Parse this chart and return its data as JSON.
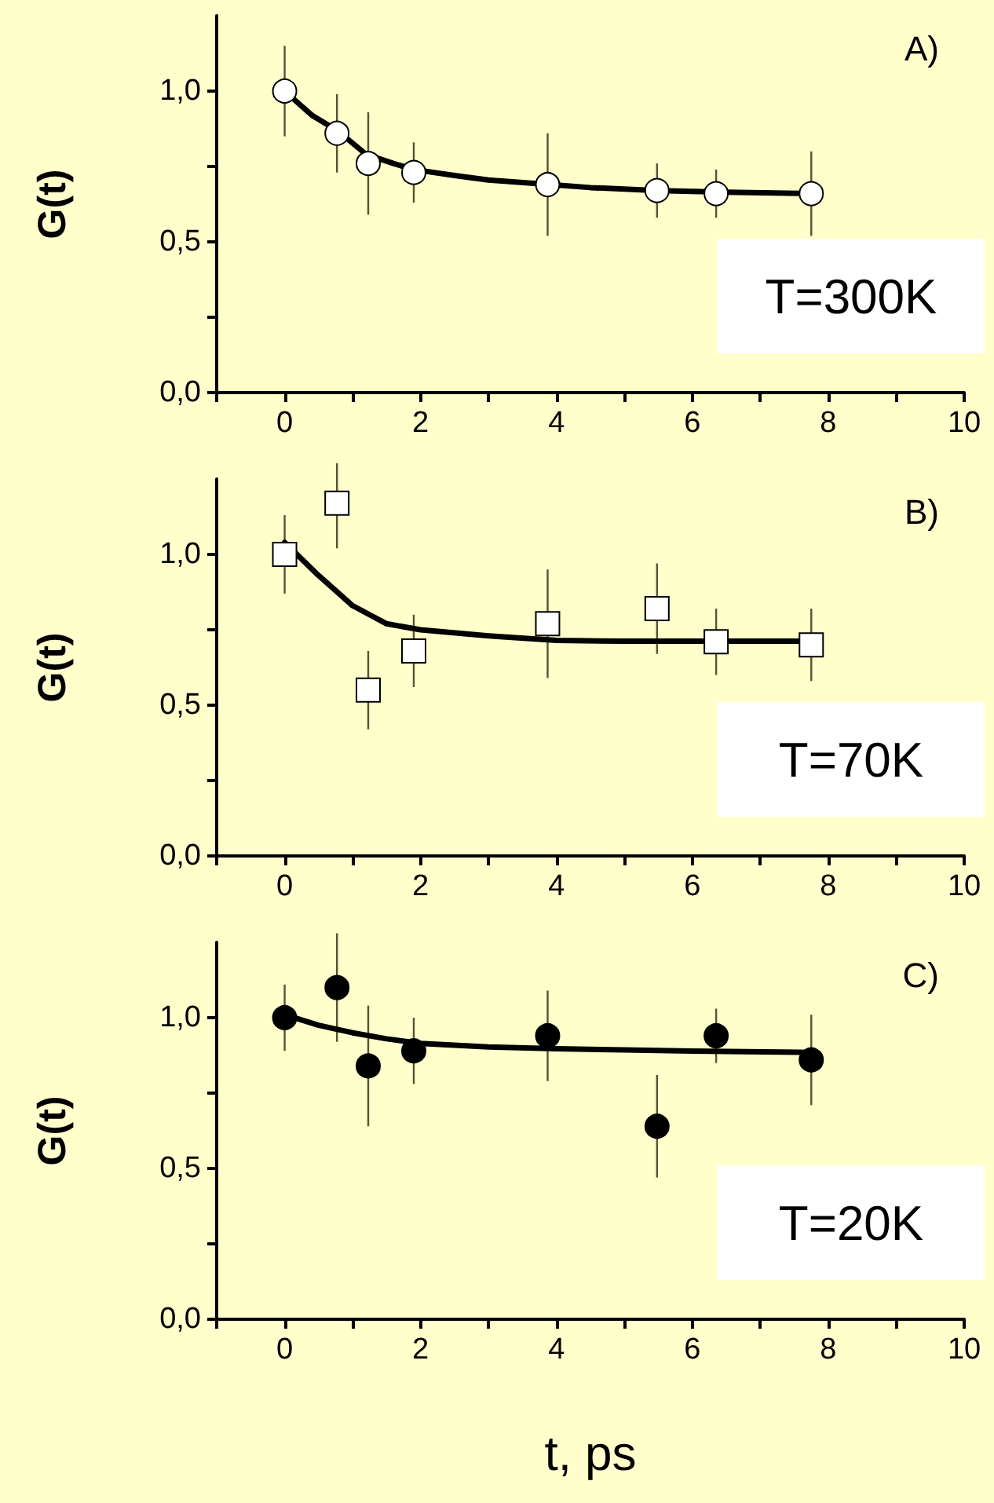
{
  "chart_data": [
    {
      "type": "scatter",
      "ylabel": "G(t)",
      "annotations": [
        "A)",
        "T=300K"
      ],
      "xlim": [
        -1,
        10
      ],
      "xticks": [
        {
          "value": -1,
          "label": null
        },
        0,
        {
          "value": 1,
          "label": null
        },
        2,
        {
          "value": 3,
          "label": null
        },
        4,
        {
          "value": 5,
          "label": null
        },
        6,
        {
          "value": 7,
          "label": null
        },
        8,
        {
          "value": 9,
          "label": null
        },
        10
      ],
      "ylim": [
        0,
        1.25
      ],
      "yticks": [
        {
          "value": 0,
          "label": "0,0"
        },
        {
          "value": 0.25,
          "label": null
        },
        {
          "value": 0.5,
          "label": "0,5"
        },
        {
          "value": 0.75,
          "label": null
        },
        {
          "value": 1,
          "label": "1,0"
        }
      ],
      "series": [
        {
          "marker": "circle",
          "color": "#ffffff",
          "x": [
            0,
            0.77,
            1.23,
            1.9,
            3.87,
            5.48,
            6.35,
            7.75
          ],
          "values": [
            1.0,
            0.86,
            0.76,
            0.73,
            0.69,
            0.67,
            0.66,
            0.66
          ],
          "errors": [
            0.15,
            0.13,
            0.17,
            0.1,
            0.17,
            0.09,
            0.08,
            0.14
          ]
        },
        {
          "type": "line",
          "marker": "none",
          "color": "#000000",
          "x": [
            0,
            0.4,
            0.77,
            1.2,
            1.6,
            1.9,
            2.5,
            3,
            3.9,
            4.5,
            5.5,
            6.5,
            7.75
          ],
          "values": [
            1.0,
            0.92,
            0.87,
            0.79,
            0.76,
            0.74,
            0.72,
            0.705,
            0.69,
            0.68,
            0.67,
            0.665,
            0.66
          ]
        }
      ]
    },
    {
      "type": "scatter",
      "ylabel": "G(t)",
      "annotations": [
        "B)",
        "T=70K"
      ],
      "xlim": [
        -1,
        10
      ],
      "xticks": [
        {
          "value": -1,
          "label": null
        },
        0,
        {
          "value": 1,
          "label": null
        },
        2,
        {
          "value": 3,
          "label": null
        },
        4,
        {
          "value": 5,
          "label": null
        },
        6,
        {
          "value": 7,
          "label": null
        },
        8,
        {
          "value": 9,
          "label": null
        },
        10
      ],
      "ylim": [
        0,
        1.25
      ],
      "yticks": [
        {
          "value": 0,
          "label": "0,0"
        },
        {
          "value": 0.25,
          "label": null
        },
        {
          "value": 0.5,
          "label": "0,5"
        },
        {
          "value": 0.75,
          "label": null
        },
        {
          "value": 1,
          "label": "1,0"
        }
      ],
      "series": [
        {
          "marker": "square",
          "color": "#ffffff",
          "x": [
            0,
            0.77,
            1.23,
            1.9,
            3.87,
            5.48,
            6.35,
            7.75
          ],
          "values": [
            1.0,
            1.17,
            0.55,
            0.68,
            0.77,
            0.82,
            0.71,
            0.7
          ],
          "errors": [
            0.13,
            0.15,
            0.13,
            0.12,
            0.18,
            0.15,
            0.11,
            0.12
          ]
        },
        {
          "type": "line",
          "marker": "none",
          "color": "#000000",
          "x": [
            0,
            0.5,
            1,
            1.5,
            2,
            3,
            4,
            5,
            6,
            7.75
          ],
          "values": [
            1.04,
            0.93,
            0.83,
            0.77,
            0.75,
            0.73,
            0.715,
            0.712,
            0.712,
            0.712
          ]
        }
      ]
    },
    {
      "type": "scatter",
      "ylabel": "G(t)",
      "xlabel": "t, ps",
      "annotations": [
        "C)",
        "T=20K"
      ],
      "xlim": [
        -1,
        10
      ],
      "xticks": [
        {
          "value": -1,
          "label": null
        },
        0,
        {
          "value": 1,
          "label": null
        },
        2,
        {
          "value": 3,
          "label": null
        },
        4,
        {
          "value": 5,
          "label": null
        },
        6,
        {
          "value": 7,
          "label": null
        },
        8,
        {
          "value": 9,
          "label": null
        },
        10
      ],
      "ylim": [
        0,
        1.25
      ],
      "yticks": [
        {
          "value": 0,
          "label": "0,0"
        },
        {
          "value": 0.25,
          "label": null
        },
        {
          "value": 0.5,
          "label": "0,5"
        },
        {
          "value": 0.75,
          "label": null
        },
        {
          "value": 1,
          "label": "1,0"
        }
      ],
      "series": [
        {
          "marker": "circle",
          "color": "#000000",
          "x": [
            0,
            0.77,
            1.23,
            1.9,
            3.87,
            5.48,
            6.35,
            7.75
          ],
          "values": [
            1.0,
            1.1,
            0.84,
            0.89,
            0.94,
            0.64,
            0.94,
            0.86
          ],
          "errors": [
            0.11,
            0.18,
            0.2,
            0.11,
            0.15,
            0.17,
            0.09,
            0.15
          ]
        },
        {
          "type": "line",
          "marker": "none",
          "color": "#000000",
          "x": [
            0,
            0.5,
            1,
            1.5,
            2,
            3,
            4,
            5,
            6,
            7.75
          ],
          "values": [
            1.01,
            0.975,
            0.95,
            0.93,
            0.915,
            0.903,
            0.897,
            0.893,
            0.889,
            0.885
          ]
        }
      ]
    }
  ]
}
